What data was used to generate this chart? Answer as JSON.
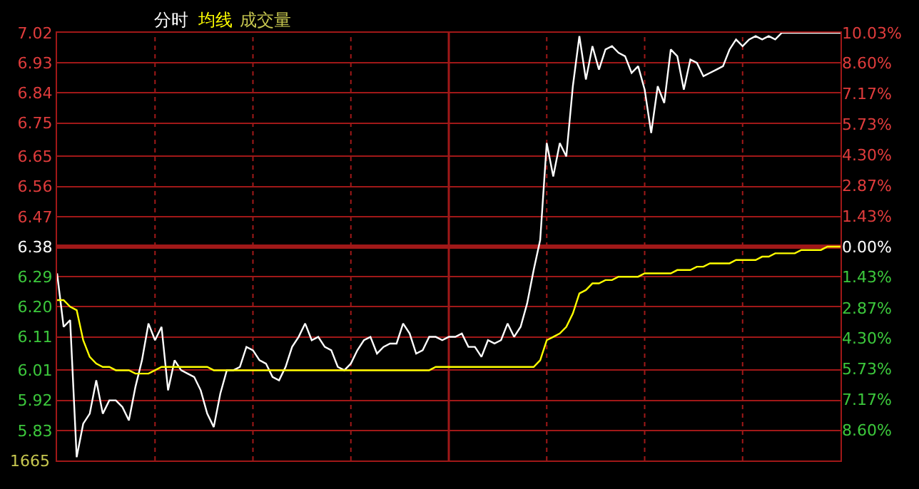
{
  "chart_data": {
    "type": "line",
    "categories": [
      null,
      null,
      null,
      null,
      null,
      null,
      null,
      null,
      null,
      null,
      null,
      null,
      null,
      null,
      null,
      null,
      null,
      null,
      null,
      null,
      null,
      null,
      null,
      null,
      null,
      null,
      null,
      null,
      null,
      null,
      null,
      null,
      null,
      null,
      null,
      null,
      null,
      null,
      null,
      null,
      null,
      null,
      null,
      null,
      null,
      null,
      null,
      null,
      null,
      null,
      null,
      null,
      null,
      null,
      null,
      null,
      null,
      null,
      null,
      null,
      null,
      null,
      null,
      null,
      null,
      null,
      null,
      null,
      null,
      null,
      null,
      null,
      null,
      null,
      null,
      null,
      null,
      null,
      null,
      null,
      null,
      null,
      null,
      null,
      null,
      null,
      null,
      null,
      null,
      null,
      null,
      null,
      null,
      null,
      null,
      null,
      null,
      null,
      null,
      null,
      null,
      null,
      null,
      null,
      null,
      null,
      null,
      null,
      null,
      null,
      null,
      null,
      null,
      null,
      null,
      null,
      null,
      null,
      null,
      null,
      null
    ],
    "series": [
      {
        "name": "分时",
        "color": "#ffffff",
        "values": [
          6.3,
          6.14,
          6.16,
          5.75,
          5.85,
          5.88,
          5.98,
          5.88,
          5.92,
          5.92,
          5.9,
          5.86,
          5.96,
          6.04,
          6.15,
          6.1,
          6.14,
          5.95,
          6.04,
          6.01,
          6.0,
          5.99,
          5.95,
          5.88,
          5.84,
          5.94,
          6.01,
          6.01,
          6.02,
          6.08,
          6.07,
          6.04,
          6.03,
          5.99,
          5.98,
          6.02,
          6.08,
          6.11,
          6.15,
          6.1,
          6.11,
          6.08,
          6.07,
          6.02,
          6.01,
          6.03,
          6.07,
          6.1,
          6.11,
          6.06,
          6.08,
          6.09,
          6.09,
          6.15,
          6.12,
          6.06,
          6.07,
          6.11,
          6.11,
          6.1,
          6.11,
          6.11,
          6.12,
          6.08,
          6.08,
          6.05,
          6.1,
          6.09,
          6.1,
          6.15,
          6.11,
          6.14,
          6.21,
          6.31,
          6.4,
          6.69,
          6.59,
          6.69,
          6.65,
          6.86,
          7.01,
          6.88,
          6.98,
          6.91,
          6.97,
          6.98,
          6.96,
          6.95,
          6.9,
          6.92,
          6.85,
          6.72,
          6.86,
          6.81,
          6.97,
          6.95,
          6.85,
          6.94,
          6.93,
          6.89,
          6.9,
          6.91,
          6.92,
          6.97,
          7.0,
          6.98,
          7.0,
          7.01,
          7.0,
          7.01,
          7.0,
          7.02,
          7.02,
          7.02,
          7.02,
          7.02,
          7.02,
          7.02,
          7.02,
          7.02,
          7.02
        ]
      },
      {
        "name": "均线",
        "color": "#ffff00",
        "values": [
          6.22,
          6.22,
          6.2,
          6.19,
          6.1,
          6.05,
          6.03,
          6.02,
          6.02,
          6.01,
          6.01,
          6.01,
          6.0,
          6.0,
          6.0,
          6.01,
          6.02,
          6.02,
          6.02,
          6.02,
          6.02,
          6.02,
          6.02,
          6.02,
          6.01,
          6.01,
          6.01,
          6.01,
          6.01,
          6.01,
          6.01,
          6.01,
          6.01,
          6.01,
          6.01,
          6.01,
          6.01,
          6.01,
          6.01,
          6.01,
          6.01,
          6.01,
          6.01,
          6.01,
          6.01,
          6.01,
          6.01,
          6.01,
          6.01,
          6.01,
          6.01,
          6.01,
          6.01,
          6.01,
          6.01,
          6.01,
          6.01,
          6.01,
          6.02,
          6.02,
          6.02,
          6.02,
          6.02,
          6.02,
          6.02,
          6.02,
          6.02,
          6.02,
          6.02,
          6.02,
          6.02,
          6.02,
          6.02,
          6.02,
          6.04,
          6.1,
          6.11,
          6.12,
          6.14,
          6.18,
          6.24,
          6.25,
          6.27,
          6.27,
          6.28,
          6.28,
          6.29,
          6.29,
          6.29,
          6.29,
          6.3,
          6.3,
          6.3,
          6.3,
          6.3,
          6.31,
          6.31,
          6.31,
          6.32,
          6.32,
          6.33,
          6.33,
          6.33,
          6.33,
          6.34,
          6.34,
          6.34,
          6.34,
          6.35,
          6.35,
          6.36,
          6.36,
          6.36,
          6.36,
          6.37,
          6.37,
          6.37,
          6.37,
          6.38,
          6.38,
          6.38
        ]
      }
    ],
    "ylim": [
      5.74,
      7.02
    ],
    "yticks": [
      7.02,
      6.93,
      6.84,
      6.75,
      6.65,
      6.56,
      6.47,
      6.38,
      6.29,
      {
        "value": 6.2,
        "label": "6.20"
      },
      6.11,
      6.01,
      5.92,
      5.83
    ],
    "y2lim": [
      -10.03,
      10.03
    ],
    "y2ticks": [
      {
        "value": 10.03,
        "label": "10.03%"
      },
      {
        "value": 8.6,
        "label": "8.60%"
      },
      {
        "value": 7.17,
        "label": "7.17%"
      },
      {
        "value": 5.73,
        "label": "5.73%"
      },
      {
        "value": 4.3,
        "label": "4.30%"
      },
      {
        "value": 2.87,
        "label": "2.87%"
      },
      {
        "value": 1.43,
        "label": "1.43%"
      },
      {
        "value": 0,
        "label": "0.00%"
      },
      {
        "value": -1.43,
        "label": "1.43%"
      },
      {
        "value": -2.87,
        "label": "2.87%"
      },
      {
        "value": -4.3,
        "label": "4.30%"
      },
      {
        "value": -5.73,
        "label": "5.73%"
      },
      {
        "value": -7.17,
        "label": "7.17%"
      },
      {
        "value": -8.6,
        "label": "8.60%"
      }
    ],
    "ref_lines": [
      {
        "axis": "y",
        "value": 6.38
      }
    ],
    "grid": true,
    "tick_labels": "y",
    "legend": "top left",
    "annotations": [
      "成交量",
      "1665"
    ]
  }
}
